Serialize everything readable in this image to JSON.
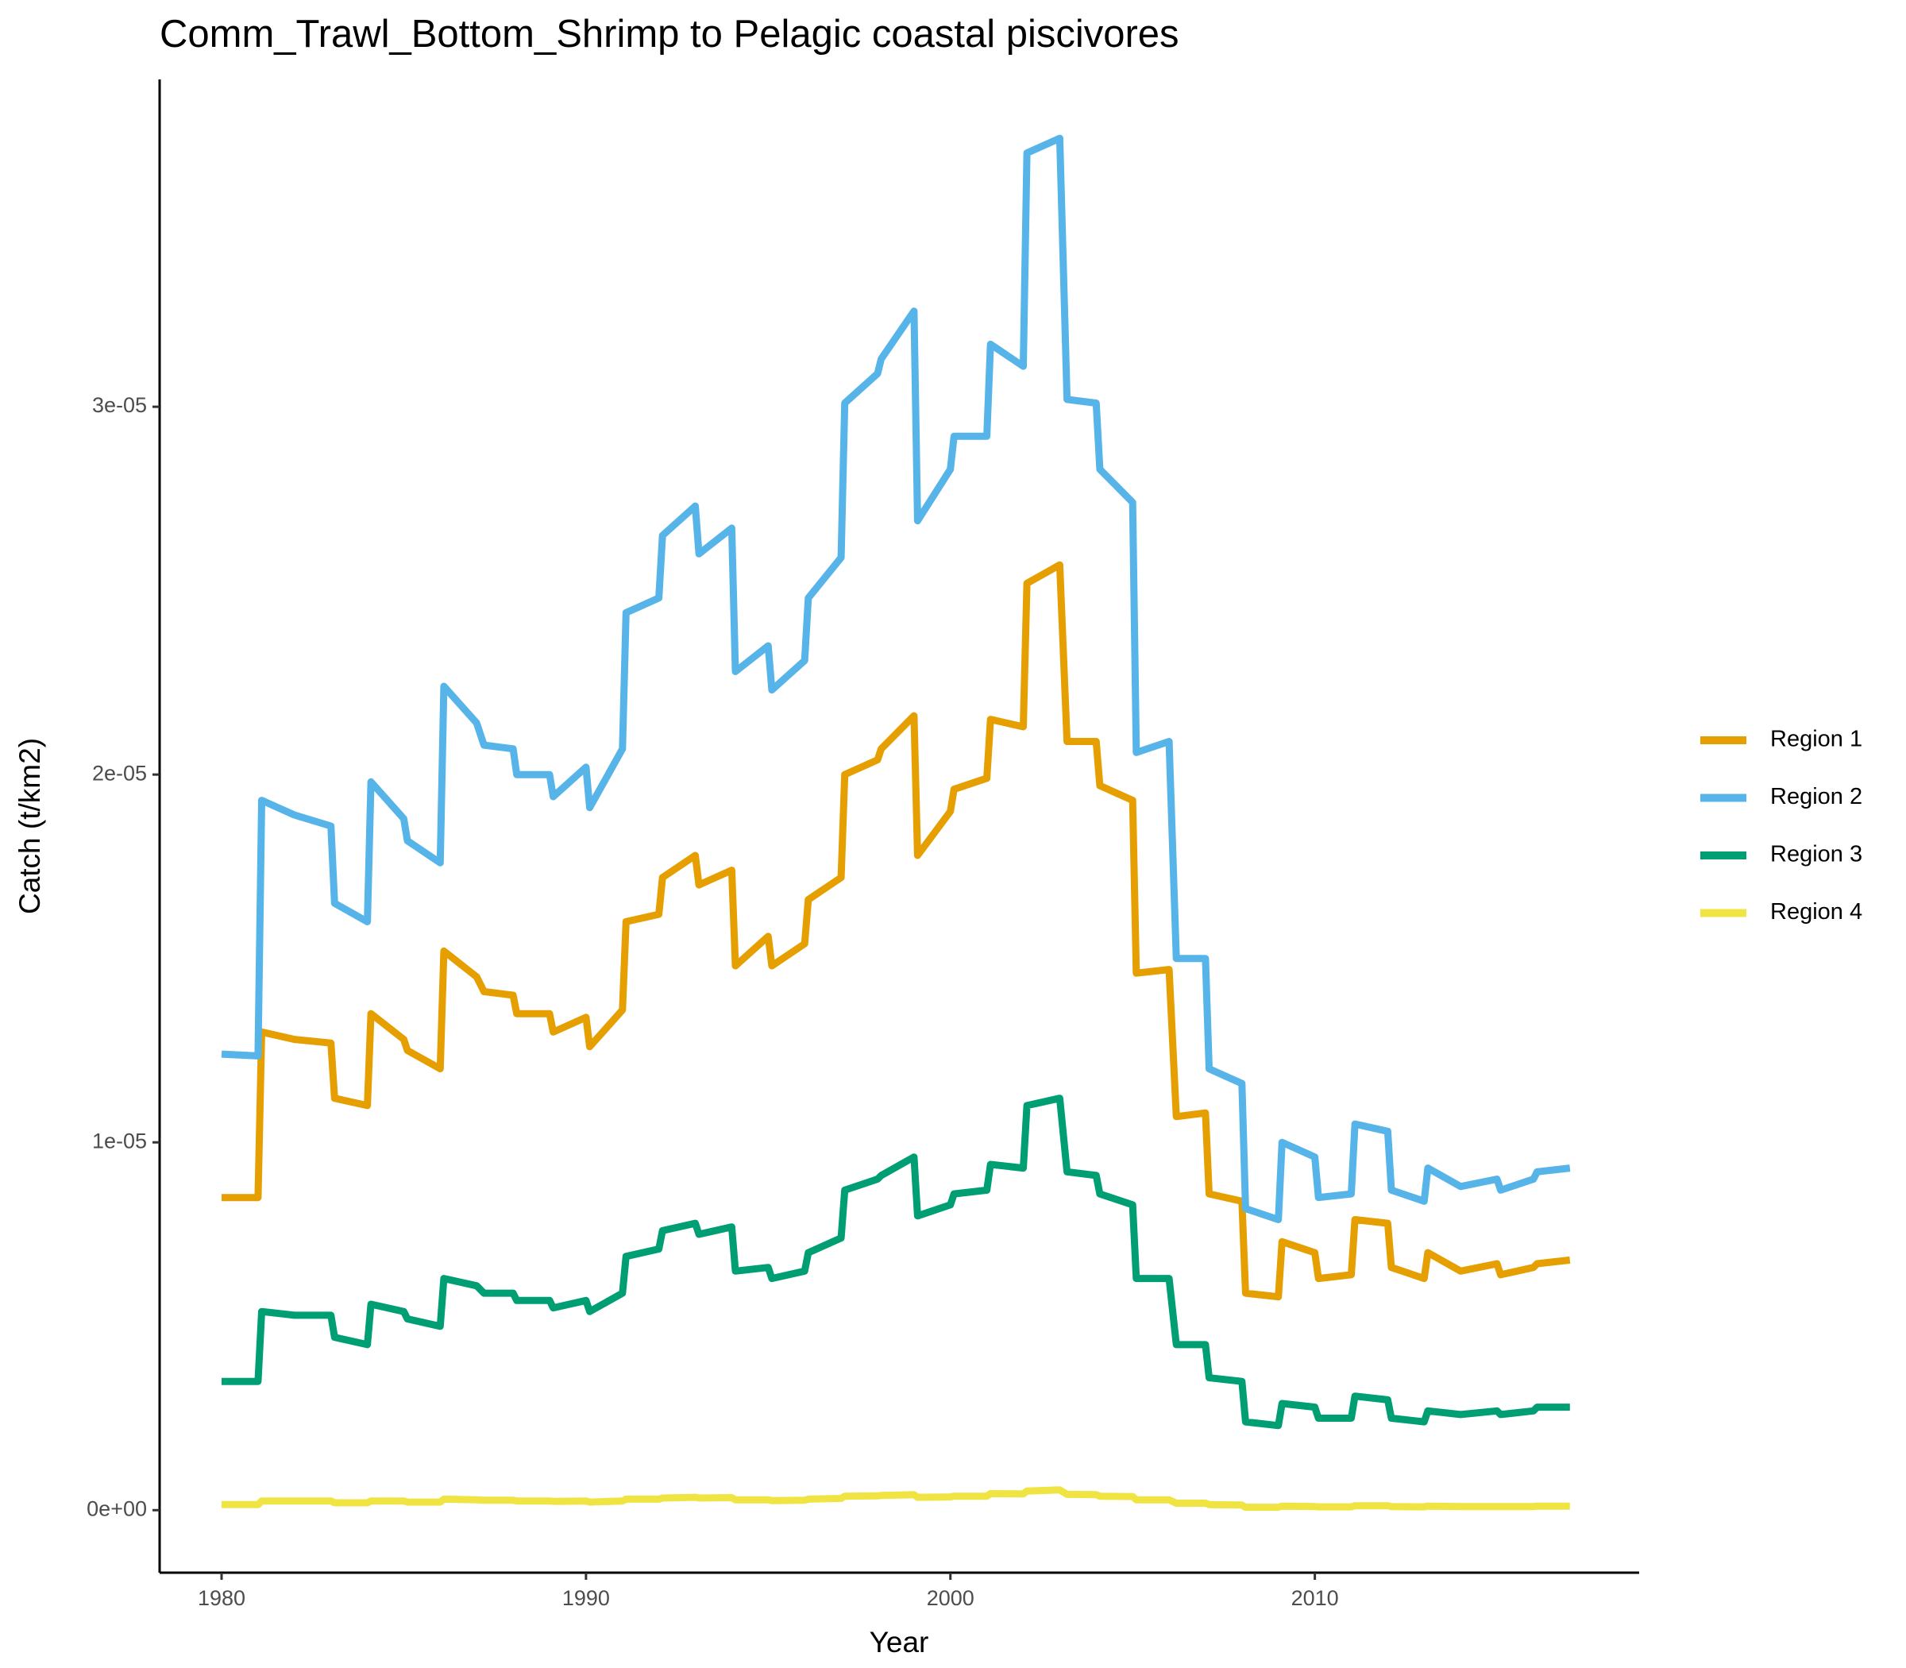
{
  "chart_data": {
    "type": "line",
    "title": "Comm_Trawl_Bottom_Shrimp to Pelagic coastal piscivores",
    "xlabel": "Year",
    "ylabel": "Catch (t/km2)",
    "x": [
      1980,
      1981,
      1981.1,
      1982,
      1983,
      1983.1,
      1984,
      1984.1,
      1985,
      1985.1,
      1986,
      1986.1,
      1987,
      1987.2,
      1988,
      1988.1,
      1989,
      1989.1,
      1990,
      1990.1,
      1991,
      1991.1,
      1992,
      1992.1,
      1993,
      1993.1,
      1994,
      1994.1,
      1995,
      1995.1,
      1996,
      1996.1,
      1997,
      1997.1,
      1998,
      1998.1,
      1999,
      1999.1,
      2000,
      2000.1,
      2001,
      2001.1,
      2002,
      2002.1,
      2003,
      2003.2,
      2004,
      2004.1,
      2005,
      2005.1,
      2006,
      2006.2,
      2007,
      2007.1,
      2008,
      2008.1,
      2009,
      2009.1,
      2010,
      2010.1,
      2011,
      2011.1,
      2012,
      2012.1,
      2013,
      2013.1,
      2014,
      2015,
      2015.1,
      2016,
      2016.1,
      2017
    ],
    "series": [
      {
        "name": "Region 1",
        "color": "#e69f00",
        "values": [
          8.5e-06,
          8.5e-06,
          1.3e-05,
          1.28e-05,
          1.27e-05,
          1.12e-05,
          1.1e-05,
          1.35e-05,
          1.28e-05,
          1.25e-05,
          1.2e-05,
          1.52e-05,
          1.45e-05,
          1.41e-05,
          1.4e-05,
          1.35e-05,
          1.35e-05,
          1.3e-05,
          1.34e-05,
          1.26e-05,
          1.36e-05,
          1.6e-05,
          1.62e-05,
          1.72e-05,
          1.78e-05,
          1.7e-05,
          1.74e-05,
          1.48e-05,
          1.56e-05,
          1.48e-05,
          1.54e-05,
          1.66e-05,
          1.72e-05,
          2e-05,
          2.04e-05,
          2.07e-05,
          2.16e-05,
          1.78e-05,
          1.9e-05,
          1.96e-05,
          1.99e-05,
          2.15e-05,
          2.13e-05,
          2.52e-05,
          2.57e-05,
          2.09e-05,
          2.09e-05,
          1.97e-05,
          1.93e-05,
          1.46e-05,
          1.47e-05,
          1.07e-05,
          1.08e-05,
          8.6e-06,
          8.4e-06,
          5.9e-06,
          5.8e-06,
          7.3e-06,
          7e-06,
          6.3e-06,
          6.4e-06,
          7.9e-06,
          7.8e-06,
          6.6e-06,
          6.3e-06,
          7e-06,
          6.5e-06,
          6.7e-06,
          6.4e-06,
          6.6e-06,
          6.7e-06,
          6.8e-06
        ]
      },
      {
        "name": "Region 2",
        "color": "#56b4e9",
        "values": [
          1.24e-05,
          1.235e-05,
          1.93e-05,
          1.89e-05,
          1.86e-05,
          1.65e-05,
          1.6e-05,
          1.98e-05,
          1.88e-05,
          1.82e-05,
          1.76e-05,
          2.24e-05,
          2.14e-05,
          2.08e-05,
          2.07e-05,
          2e-05,
          2e-05,
          1.94e-05,
          2.02e-05,
          1.91e-05,
          2.07e-05,
          2.44e-05,
          2.48e-05,
          2.65e-05,
          2.73e-05,
          2.6e-05,
          2.67e-05,
          2.28e-05,
          2.35e-05,
          2.23e-05,
          2.31e-05,
          2.48e-05,
          2.59e-05,
          3.01e-05,
          3.09e-05,
          3.13e-05,
          3.26e-05,
          2.69e-05,
          2.83e-05,
          2.92e-05,
          2.92e-05,
          3.17e-05,
          3.11e-05,
          3.69e-05,
          3.73e-05,
          3.02e-05,
          3.01e-05,
          2.83e-05,
          2.74e-05,
          2.06e-05,
          2.09e-05,
          1.5e-05,
          1.5e-05,
          1.2e-05,
          1.16e-05,
          8.2e-06,
          7.9e-06,
          1e-05,
          9.6e-06,
          8.5e-06,
          8.6e-06,
          1.05e-05,
          1.03e-05,
          8.7e-06,
          8.4e-06,
          9.3e-06,
          8.8e-06,
          9e-06,
          8.7e-06,
          9e-06,
          9.2e-06,
          9.3e-06
        ]
      },
      {
        "name": "Region 3",
        "color": "#009e73",
        "values": [
          3.5e-06,
          3.5e-06,
          5.4e-06,
          5.3e-06,
          5.3e-06,
          4.7e-06,
          4.5e-06,
          5.6e-06,
          5.4e-06,
          5.2e-06,
          5e-06,
          6.3e-06,
          6.1e-06,
          5.9e-06,
          5.9e-06,
          5.7e-06,
          5.7e-06,
          5.5e-06,
          5.7e-06,
          5.4e-06,
          5.9e-06,
          6.9e-06,
          7.1e-06,
          7.6e-06,
          7.8e-06,
          7.5e-06,
          7.7e-06,
          6.5e-06,
          6.6e-06,
          6.3e-06,
          6.5e-06,
          7e-06,
          7.4e-06,
          8.7e-06,
          9e-06,
          9.1e-06,
          9.6e-06,
          8e-06,
          8.3e-06,
          8.6e-06,
          8.7e-06,
          9.4e-06,
          9.3e-06,
          1.1e-05,
          1.12e-05,
          9.2e-06,
          9.1e-06,
          8.6e-06,
          8.3e-06,
          6.3e-06,
          6.3e-06,
          4.5e-06,
          4.5e-06,
          3.6e-06,
          3.5e-06,
          2.4e-06,
          2.3e-06,
          2.9e-06,
          2.8e-06,
          2.5e-06,
          2.5e-06,
          3.1e-06,
          3e-06,
          2.5e-06,
          2.4e-06,
          2.7e-06,
          2.6e-06,
          2.7e-06,
          2.6e-06,
          2.7e-06,
          2.8e-06,
          2.8e-06
        ]
      },
      {
        "name": "Region 4",
        "color": "#f0e442",
        "values": [
          1.5e-07,
          1.5e-07,
          2.5e-07,
          2.5e-07,
          2.5e-07,
          2e-07,
          2e-07,
          2.5e-07,
          2.5e-07,
          2.2e-07,
          2.2e-07,
          3e-07,
          2.8e-07,
          2.7e-07,
          2.7e-07,
          2.5e-07,
          2.5e-07,
          2.4e-07,
          2.5e-07,
          2.2e-07,
          2.5e-07,
          3e-07,
          3e-07,
          3.3e-07,
          3.5e-07,
          3.3e-07,
          3.4e-07,
          2.8e-07,
          2.8e-07,
          2.6e-07,
          2.7e-07,
          3e-07,
          3.2e-07,
          3.8e-07,
          3.9e-07,
          4e-07,
          4.2e-07,
          3.5e-07,
          3.6e-07,
          3.8e-07,
          3.8e-07,
          4.5e-07,
          4.4e-07,
          5.2e-07,
          5.5e-07,
          4.3e-07,
          4.2e-07,
          3.8e-07,
          3.7e-07,
          2.8e-07,
          2.8e-07,
          1.9e-07,
          1.9e-07,
          1.5e-07,
          1.4e-07,
          8e-08,
          8e-08,
          1.1e-07,
          1e-07,
          9e-08,
          9e-08,
          1.2e-07,
          1.2e-07,
          1e-07,
          9e-08,
          1.1e-07,
          1e-07,
          1e-07,
          1e-07,
          1e-07,
          1.1e-07,
          1.1e-07
        ]
      }
    ],
    "xlim": [
      1978.3,
      2018.9
    ],
    "xticks": [
      1980,
      1990,
      2000,
      2010
    ],
    "ylim": [
      -1.7e-06,
      3.89e-05
    ],
    "yticks": [
      {
        "value": 0,
        "label": "0e+00"
      },
      {
        "value": 1e-05,
        "label": "1e-05"
      },
      {
        "value": 2e-05,
        "label": "2e-05"
      },
      {
        "value": 3e-05,
        "label": "3e-05"
      }
    ],
    "legend": "right"
  }
}
